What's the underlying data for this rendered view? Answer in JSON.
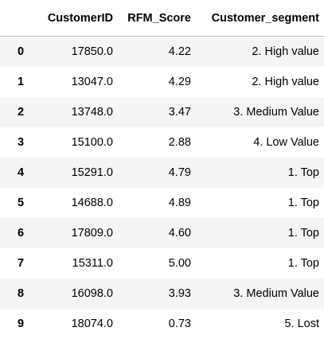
{
  "table": {
    "columns": [
      "CustomerID",
      "RFM_Score",
      "Customer_segment"
    ],
    "rows": [
      {
        "index": "0",
        "CustomerID": "17850.0",
        "RFM_Score": "4.22",
        "Customer_segment": "2. High value"
      },
      {
        "index": "1",
        "CustomerID": "13047.0",
        "RFM_Score": "4.29",
        "Customer_segment": "2. High value"
      },
      {
        "index": "2",
        "CustomerID": "13748.0",
        "RFM_Score": "3.47",
        "Customer_segment": "3. Medium Value"
      },
      {
        "index": "3",
        "CustomerID": "15100.0",
        "RFM_Score": "2.88",
        "Customer_segment": "4. Low Value"
      },
      {
        "index": "4",
        "CustomerID": "15291.0",
        "RFM_Score": "4.79",
        "Customer_segment": "1. Top"
      },
      {
        "index": "5",
        "CustomerID": "14688.0",
        "RFM_Score": "4.89",
        "Customer_segment": "1. Top"
      },
      {
        "index": "6",
        "CustomerID": "17809.0",
        "RFM_Score": "4.60",
        "Customer_segment": "1. Top"
      },
      {
        "index": "7",
        "CustomerID": "15311.0",
        "RFM_Score": "5.00",
        "Customer_segment": "1. Top"
      },
      {
        "index": "8",
        "CustomerID": "16098.0",
        "RFM_Score": "3.93",
        "Customer_segment": "3. Medium Value"
      },
      {
        "index": "9",
        "CustomerID": "18074.0",
        "RFM_Score": "0.73",
        "Customer_segment": "5. Lost"
      }
    ]
  },
  "colors": {
    "stripe": "#f5f5f5",
    "background": "#ffffff",
    "header_border": "#bdbdbd",
    "text": "#000000"
  }
}
